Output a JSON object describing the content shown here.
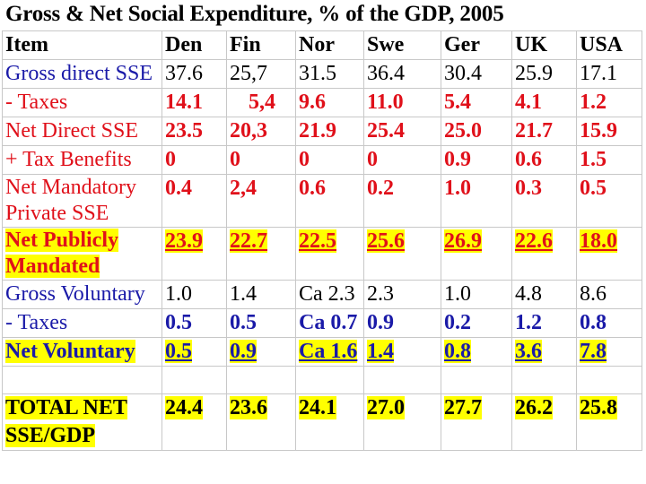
{
  "title": "Gross & Net Social Expenditure, % of the GDP, 2005",
  "header": {
    "item": "Item",
    "countries": [
      "Den",
      "Fin",
      "Nor",
      "Swe",
      "Ger",
      "UK",
      "USA"
    ]
  },
  "rows": [
    {
      "label": "Gross direct SSE",
      "values": [
        "37.6",
        "25,7",
        "31.5",
        "36.4",
        "30.4",
        "25.9",
        "17.1"
      ]
    },
    {
      "label": "- Taxes",
      "values": [
        "14.1",
        "5,4",
        "9.6",
        "11.0",
        "5.4",
        "4.1",
        "1.2"
      ]
    },
    {
      "label": "Net Direct SSE",
      "values": [
        "23.5",
        "20,3",
        "21.9",
        "25.4",
        "25.0",
        "21.7",
        "15.9"
      ]
    },
    {
      "label": "+ Tax Benefits",
      "values": [
        "0",
        "0",
        "0",
        "0",
        "0.9",
        "0.6",
        "1.5"
      ]
    },
    {
      "label": "Net Mandatory Private SSE",
      "values": [
        "0.4",
        "2,4",
        "0.6",
        "0.2",
        "1.0",
        "0.3",
        "0.5"
      ]
    },
    {
      "label": "Net Publicly Mandated",
      "values": [
        "23.9",
        "22.7",
        "22.5",
        "25.6",
        "26.9",
        "22.6",
        "18.0"
      ]
    },
    {
      "label": "Gross Voluntary",
      "values": [
        "1.0",
        "1.4",
        "Ca 2.3",
        "2.3",
        "1.0",
        "4.8",
        "8.6"
      ]
    },
    {
      "label": "- Taxes",
      "values": [
        "0.5",
        "0.5",
        "Ca 0.7",
        "0.9",
        "0.2",
        "1.2",
        "0.8"
      ]
    },
    {
      "label": "Net Voluntary",
      "values": [
        "0.5",
        "0.9",
        "Ca 1.6",
        "1.4",
        "0.8",
        "3.6",
        "7.8"
      ]
    },
    {
      "label": "",
      "values": [
        "",
        "",
        "",
        "",
        "",
        "",
        ""
      ]
    },
    {
      "label": "TOTAL NET SSE/GDP",
      "values": [
        "24.4",
        "23.6",
        "24.1",
        "27.0",
        "27.7",
        "26.2",
        "25.8"
      ]
    }
  ],
  "colors": {
    "red": "#e0101a",
    "blue": "#1a1aa8",
    "highlight": "#ffff00",
    "black": "#000000"
  }
}
